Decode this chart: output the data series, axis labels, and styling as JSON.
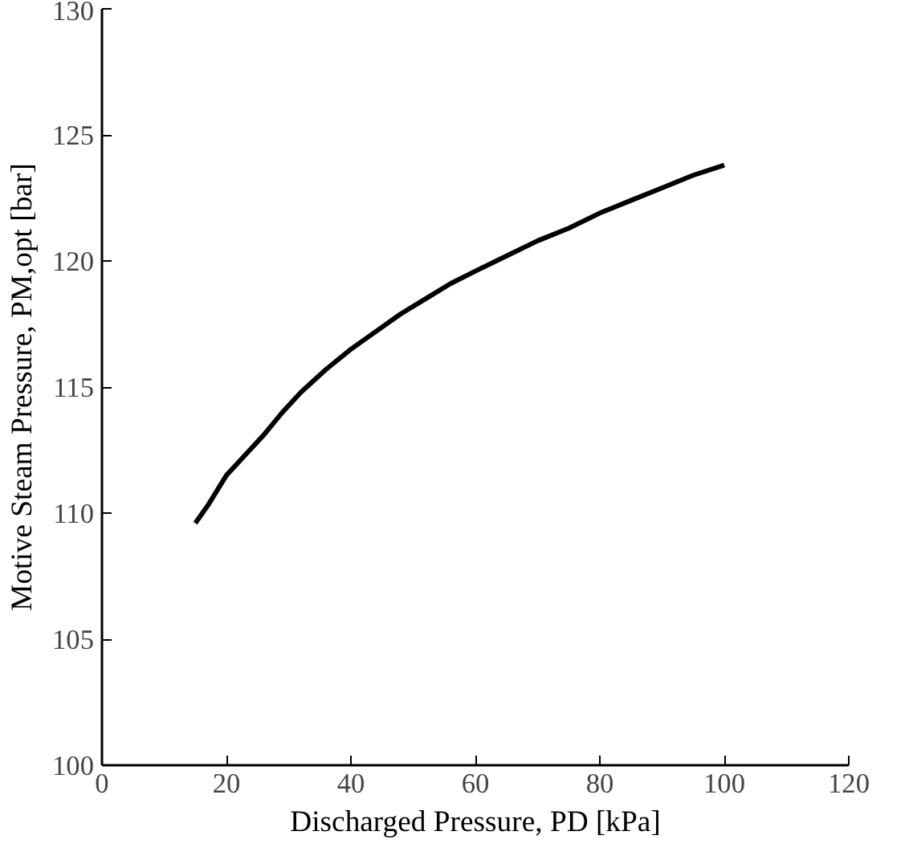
{
  "chart_data": {
    "type": "line",
    "xlabel": "Discharged Pressure, PD [kPa]",
    "ylabel": "Motive Steam Pressure, PM,opt [bar]",
    "x": [
      15,
      17,
      20,
      23,
      26,
      29,
      32,
      36,
      40,
      44,
      48,
      52,
      56,
      60,
      65,
      70,
      75,
      80,
      85,
      90,
      95,
      100
    ],
    "series": [
      {
        "color": "#000000",
        "values": [
          109.6,
          110.3,
          111.5,
          112.3,
          113.1,
          114.0,
          114.8,
          115.7,
          116.5,
          117.2,
          117.9,
          118.5,
          119.1,
          119.6,
          120.2,
          120.8,
          121.3,
          121.9,
          122.4,
          122.9,
          123.4,
          123.8
        ]
      }
    ],
    "xlim": [
      0,
      120
    ],
    "ylim": [
      100,
      130
    ],
    "xticks": [
      0,
      20,
      40,
      60,
      80,
      100,
      120
    ],
    "yticks": [
      100,
      105,
      110,
      115,
      120,
      125,
      130
    ],
    "grid": false,
    "marker": "none",
    "line_style": "solid"
  }
}
